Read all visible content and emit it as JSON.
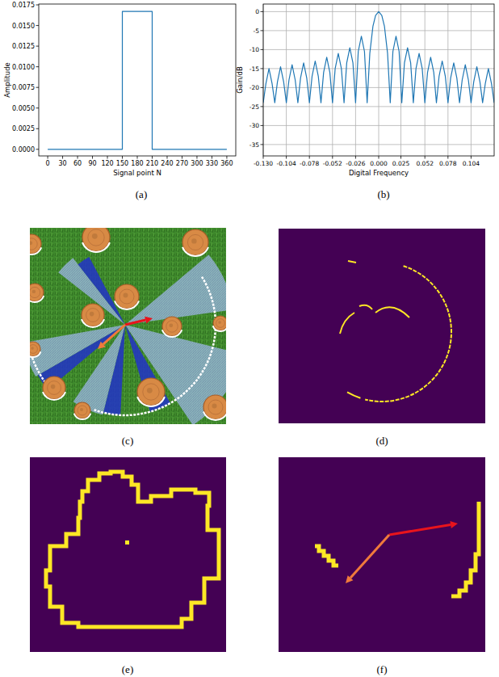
{
  "chart_data": [
    {
      "type": "line",
      "x": [
        0,
        150,
        150,
        210,
        210,
        360
      ],
      "values": [
        0,
        0,
        0.0167,
        0.0167,
        0,
        0
      ],
      "color": "#1f77b4",
      "x_label": "Signal point N",
      "y_label": "Amplitude",
      "xlim": [
        -18,
        378
      ],
      "ylim": [
        -0.0008,
        0.0176
      ],
      "xticks": [
        0,
        30,
        60,
        90,
        120,
        150,
        180,
        210,
        240,
        270,
        300,
        330,
        360
      ],
      "yticks": [
        {
          "value": 0,
          "label": "0.0000"
        },
        {
          "value": 0.0025,
          "label": "0.0025"
        },
        {
          "value": 0.005,
          "label": "0.0050"
        },
        {
          "value": 0.0075,
          "label": "0.0075"
        },
        {
          "value": 0.01,
          "label": "0.0100"
        },
        {
          "value": 0.0125,
          "label": "0.0125"
        },
        {
          "value": 0.015,
          "label": "0.0150"
        },
        {
          "value": 0.0175,
          "label": "0.0175"
        }
      ],
      "grid": false
    },
    {
      "type": "line",
      "x": [
        -0.13,
        -0.127,
        -0.1235,
        -0.12,
        -0.117,
        -0.114,
        -0.1105,
        -0.107,
        -0.104,
        -0.101,
        -0.0975,
        -0.094,
        -0.091,
        -0.088,
        -0.0845,
        -0.081,
        -0.078,
        -0.075,
        -0.0715,
        -0.068,
        -0.065,
        -0.062,
        -0.0585,
        -0.055,
        -0.052,
        -0.049,
        -0.0455,
        -0.042,
        -0.039,
        -0.036,
        -0.0325,
        -0.029,
        -0.026,
        -0.023,
        -0.0195,
        -0.016,
        -0.013,
        -0.01,
        -0.0065,
        -0.0035,
        0,
        0.0035,
        0.0065,
        0.01,
        0.013,
        0.016,
        0.0195,
        0.023,
        0.026,
        0.029,
        0.0325,
        0.036,
        0.039,
        0.042,
        0.0455,
        0.049,
        0.052,
        0.055,
        0.0585,
        0.062,
        0.065,
        0.068,
        0.0715,
        0.075,
        0.078,
        0.081,
        0.0845,
        0.088,
        0.091,
        0.094,
        0.0975,
        0.101,
        0.104,
        0.107,
        0.1105,
        0.114,
        0.117,
        0.12,
        0.1235,
        0.127,
        0.13
      ],
      "values": [
        -24,
        -19,
        -15,
        -19,
        -24,
        -18.5,
        -14.5,
        -18.5,
        -24,
        -18,
        -14,
        -18,
        -24,
        -17.5,
        -13.5,
        -17.5,
        -24,
        -17,
        -13,
        -17,
        -24,
        -16,
        -12,
        -16,
        -24,
        -15,
        -11,
        -15,
        -24,
        -13.5,
        -9.5,
        -13.5,
        -24,
        -10.5,
        -6.5,
        -10.5,
        -24,
        -11,
        -3.9,
        -1,
        0,
        -1,
        -3.9,
        -11,
        -24,
        -10.5,
        -6.5,
        -10.5,
        -24,
        -13.5,
        -9.5,
        -13.5,
        -24,
        -15,
        -11,
        -15,
        -24,
        -16,
        -12,
        -16,
        -24,
        -17,
        -13,
        -17,
        -24,
        -17.5,
        -13.5,
        -17.5,
        -24,
        -18,
        -14,
        -18,
        -24,
        -18.5,
        -14.5,
        -18.5,
        -24,
        -19,
        -15,
        -19,
        -24
      ],
      "color": "#1f77b4",
      "x_label": "Digital Frequency",
      "y_label": "Gain/dB",
      "xlim": [
        -0.13,
        0.13
      ],
      "ylim": [
        -38,
        2
      ],
      "xticks": [
        {
          "value": -0.13,
          "label": "-0.130"
        },
        {
          "value": -0.104,
          "label": "-0.104"
        },
        {
          "value": -0.078,
          "label": "-0.078"
        },
        {
          "value": -0.052,
          "label": "-0.052"
        },
        {
          "value": -0.026,
          "label": "-0.026"
        },
        {
          "value": 0,
          "label": "0.000"
        },
        {
          "value": 0.025,
          "label": "0.025"
        },
        {
          "value": 0.052,
          "label": "0.052"
        },
        {
          "value": 0.078,
          "label": "0.078"
        },
        {
          "value": 0.104,
          "label": "0.104"
        }
      ],
      "yticks": [
        0,
        -5,
        -10,
        -15,
        -20,
        -25,
        -30,
        -35
      ],
      "grid": true
    }
  ],
  "captions": [
    "(a)",
    "(b)",
    "(c)",
    "(d)",
    "(e)",
    "(f)"
  ]
}
